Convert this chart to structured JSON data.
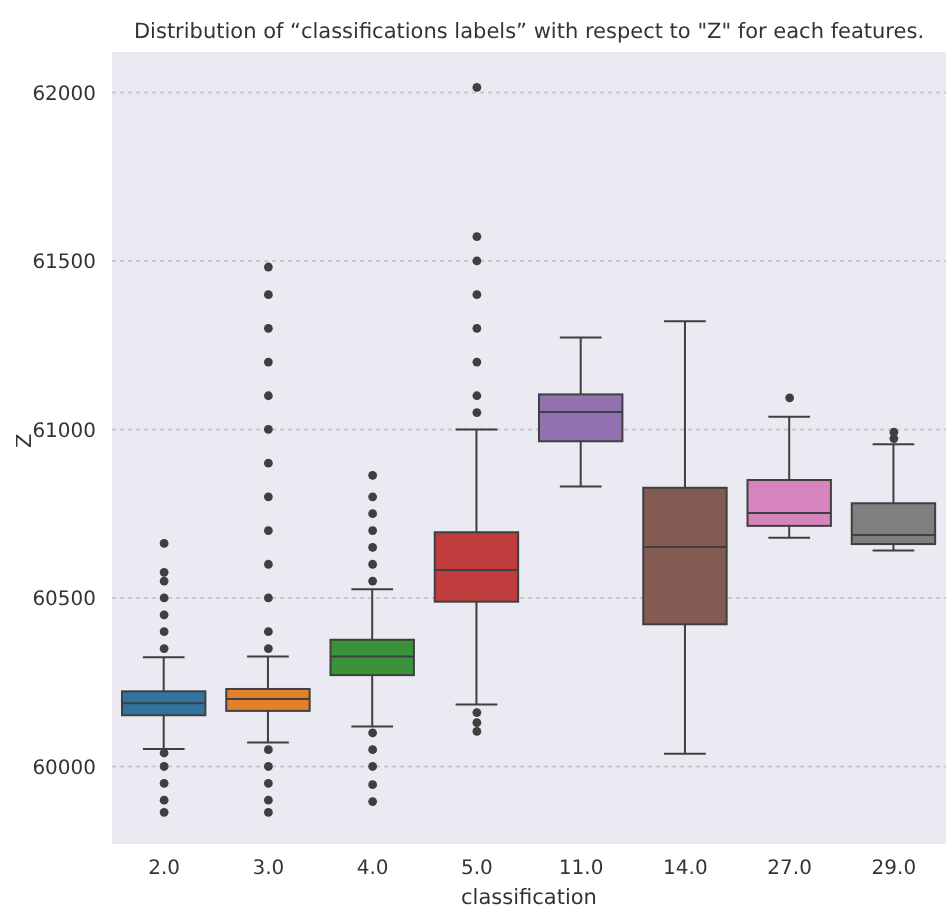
{
  "chart_data": {
    "type": "box",
    "title": "Distribution of “classifications labels” with respect to \"Z\" for each features.",
    "xlabel": "classification",
    "ylabel": "Z",
    "categories": [
      "2.0",
      "3.0",
      "4.0",
      "5.0",
      "11.0",
      "14.0",
      "27.0",
      "29.0"
    ],
    "colors": [
      "#3274a1",
      "#e1812c",
      "#3a923a",
      "#c03d3e",
      "#9372b2",
      "#845b53",
      "#d684bd",
      "#7f7f7f"
    ],
    "boxes": [
      {
        "low": 60052,
        "q1": 60152,
        "median": 60188,
        "q3": 60223,
        "high": 60324,
        "outliers": [
          59864,
          59900,
          59950,
          60000,
          60040,
          60350,
          60400,
          60450,
          60500,
          60550,
          60576,
          60662
        ]
      },
      {
        "low": 60071,
        "q1": 60165,
        "median": 60200,
        "q3": 60230,
        "high": 60326,
        "outliers": [
          59864,
          59900,
          59950,
          60000,
          60050,
          60350,
          60400,
          60500,
          60600,
          60700,
          60800,
          60900,
          61000,
          61100,
          61200,
          61300,
          61400,
          61482
        ]
      },
      {
        "low": 60119,
        "q1": 60271,
        "median": 60326,
        "q3": 60376,
        "high": 60526,
        "outliers": [
          59896,
          59946,
          60000,
          60050,
          60100,
          60550,
          60600,
          60650,
          60700,
          60750,
          60800,
          60864
        ]
      },
      {
        "low": 60184,
        "q1": 60489,
        "median": 60583,
        "q3": 60695,
        "high": 61000,
        "outliers": [
          60104,
          60130,
          60160,
          61050,
          61100,
          61200,
          61300,
          61400,
          61500,
          61572,
          62015
        ]
      },
      {
        "low": 60831,
        "q1": 60965,
        "median": 61052,
        "q3": 61104,
        "high": 61273
      },
      {
        "low": 60038,
        "q1": 60422,
        "median": 60651,
        "q3": 60827,
        "high": 61321
      },
      {
        "low": 60679,
        "q1": 60714,
        "median": 60752,
        "q3": 60850,
        "high": 61038,
        "outliers": [
          61094
        ]
      },
      {
        "low": 60641,
        "q1": 60660,
        "median": 60687,
        "q3": 60781,
        "high": 60956,
        "outliers": [
          60973,
          60992
        ]
      }
    ],
    "ylim": [
      59770,
      62120
    ],
    "yticks": [
      60000,
      60500,
      61000,
      61500,
      62000
    ],
    "grid": "y"
  }
}
